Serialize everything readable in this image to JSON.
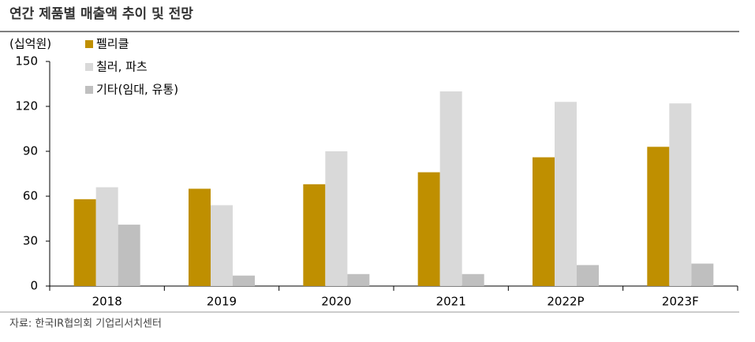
{
  "chart_data": {
    "type": "bar",
    "title": "연간 제품별 매출액 추이 및 전망",
    "y_label": "(십억원)",
    "categories": [
      "2018",
      "2019",
      "2020",
      "2021",
      "2022P",
      "2023F"
    ],
    "series": [
      {
        "name": "펠리클",
        "color": "#bf8f00",
        "values": [
          58,
          65,
          68,
          76,
          86,
          93
        ]
      },
      {
        "name": "칠러, 파츠",
        "color": "#d9d9d9",
        "values": [
          66,
          54,
          90,
          130,
          123,
          122
        ]
      },
      {
        "name": "기타(임대, 유통)",
        "color": "#bfbfbf",
        "values": [
          41,
          7,
          8,
          8,
          14,
          15
        ]
      }
    ],
    "ylim": [
      0,
      150
    ],
    "yticks": [
      0,
      30,
      60,
      90,
      120,
      150
    ],
    "grid": false,
    "source": "자료: 한국IR협의회 기업리서치센터"
  }
}
